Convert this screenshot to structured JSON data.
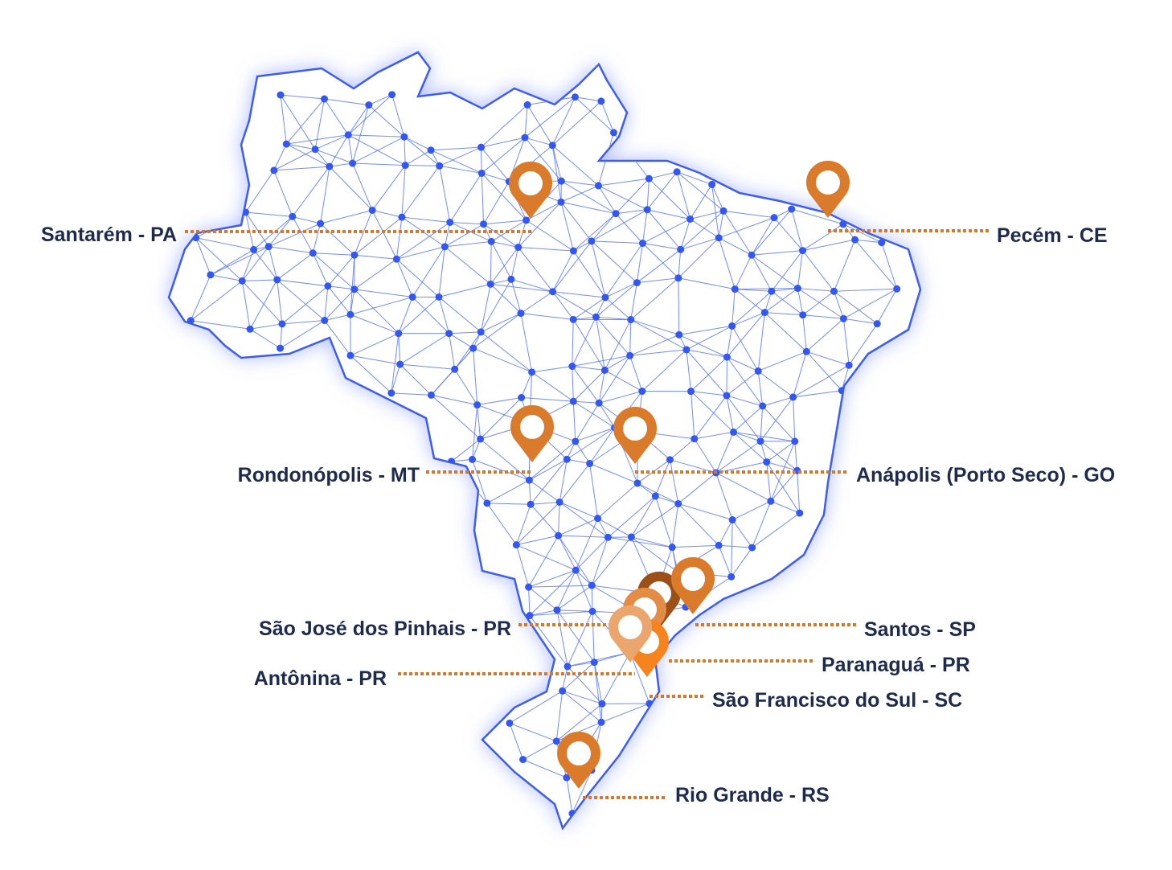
{
  "locations": [
    {
      "label": "Santarém - PA"
    },
    {
      "label": "Pecém - CE"
    },
    {
      "label": "Rondonópolis - MT"
    },
    {
      "label": "Anápolis (Porto Seco) - GO"
    },
    {
      "label": "São José dos Pinhais - PR"
    },
    {
      "label": "Santos - SP"
    },
    {
      "label": "Paranaguá - PR"
    },
    {
      "label": "Antônina - PR"
    },
    {
      "label": "São Francisco do Sul - SC"
    },
    {
      "label": "Rio Grande - RS"
    }
  ]
}
